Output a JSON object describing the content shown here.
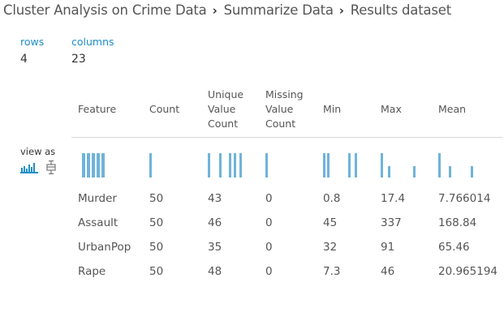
{
  "breadcrumb": {
    "items": [
      "Cluster Analysis on Crime Data",
      "Summarize Data",
      "Results dataset"
    ],
    "separator": "›"
  },
  "stats": {
    "rows_label": "rows",
    "rows_value": "4",
    "columns_label": "columns",
    "columns_value": "23"
  },
  "view_as": {
    "label": "view as",
    "options": [
      "histogram-icon",
      "boxplot-icon"
    ]
  },
  "colors": {
    "accent": "#1f8fc6",
    "bar": "#6fb3d9"
  },
  "table": {
    "headers": [
      "Feature",
      "Count",
      "Unique Value Count",
      "Missing Value Count",
      "Min",
      "Max",
      "Mean"
    ],
    "rows": [
      [
        "Murder",
        "50",
        "43",
        "0",
        "0.8",
        "17.4",
        "7.766014"
      ],
      [
        "Assault",
        "50",
        "46",
        "0",
        "45",
        "337",
        "168.84"
      ],
      [
        "UrbanPop",
        "50",
        "35",
        "0",
        "32",
        "91",
        "65.46"
      ],
      [
        "Rape",
        "50",
        "48",
        "0",
        "7.3",
        "46",
        "20.965194"
      ]
    ]
  }
}
